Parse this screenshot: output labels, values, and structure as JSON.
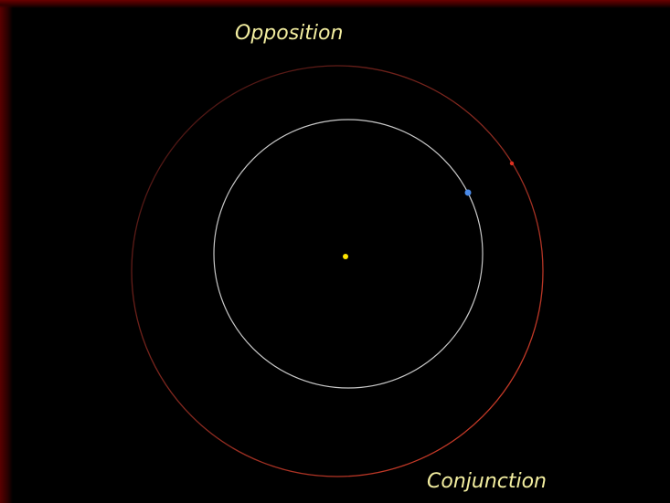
{
  "labels": {
    "opposition": "Opposition",
    "conjunction": "Conjunction"
  }
}
